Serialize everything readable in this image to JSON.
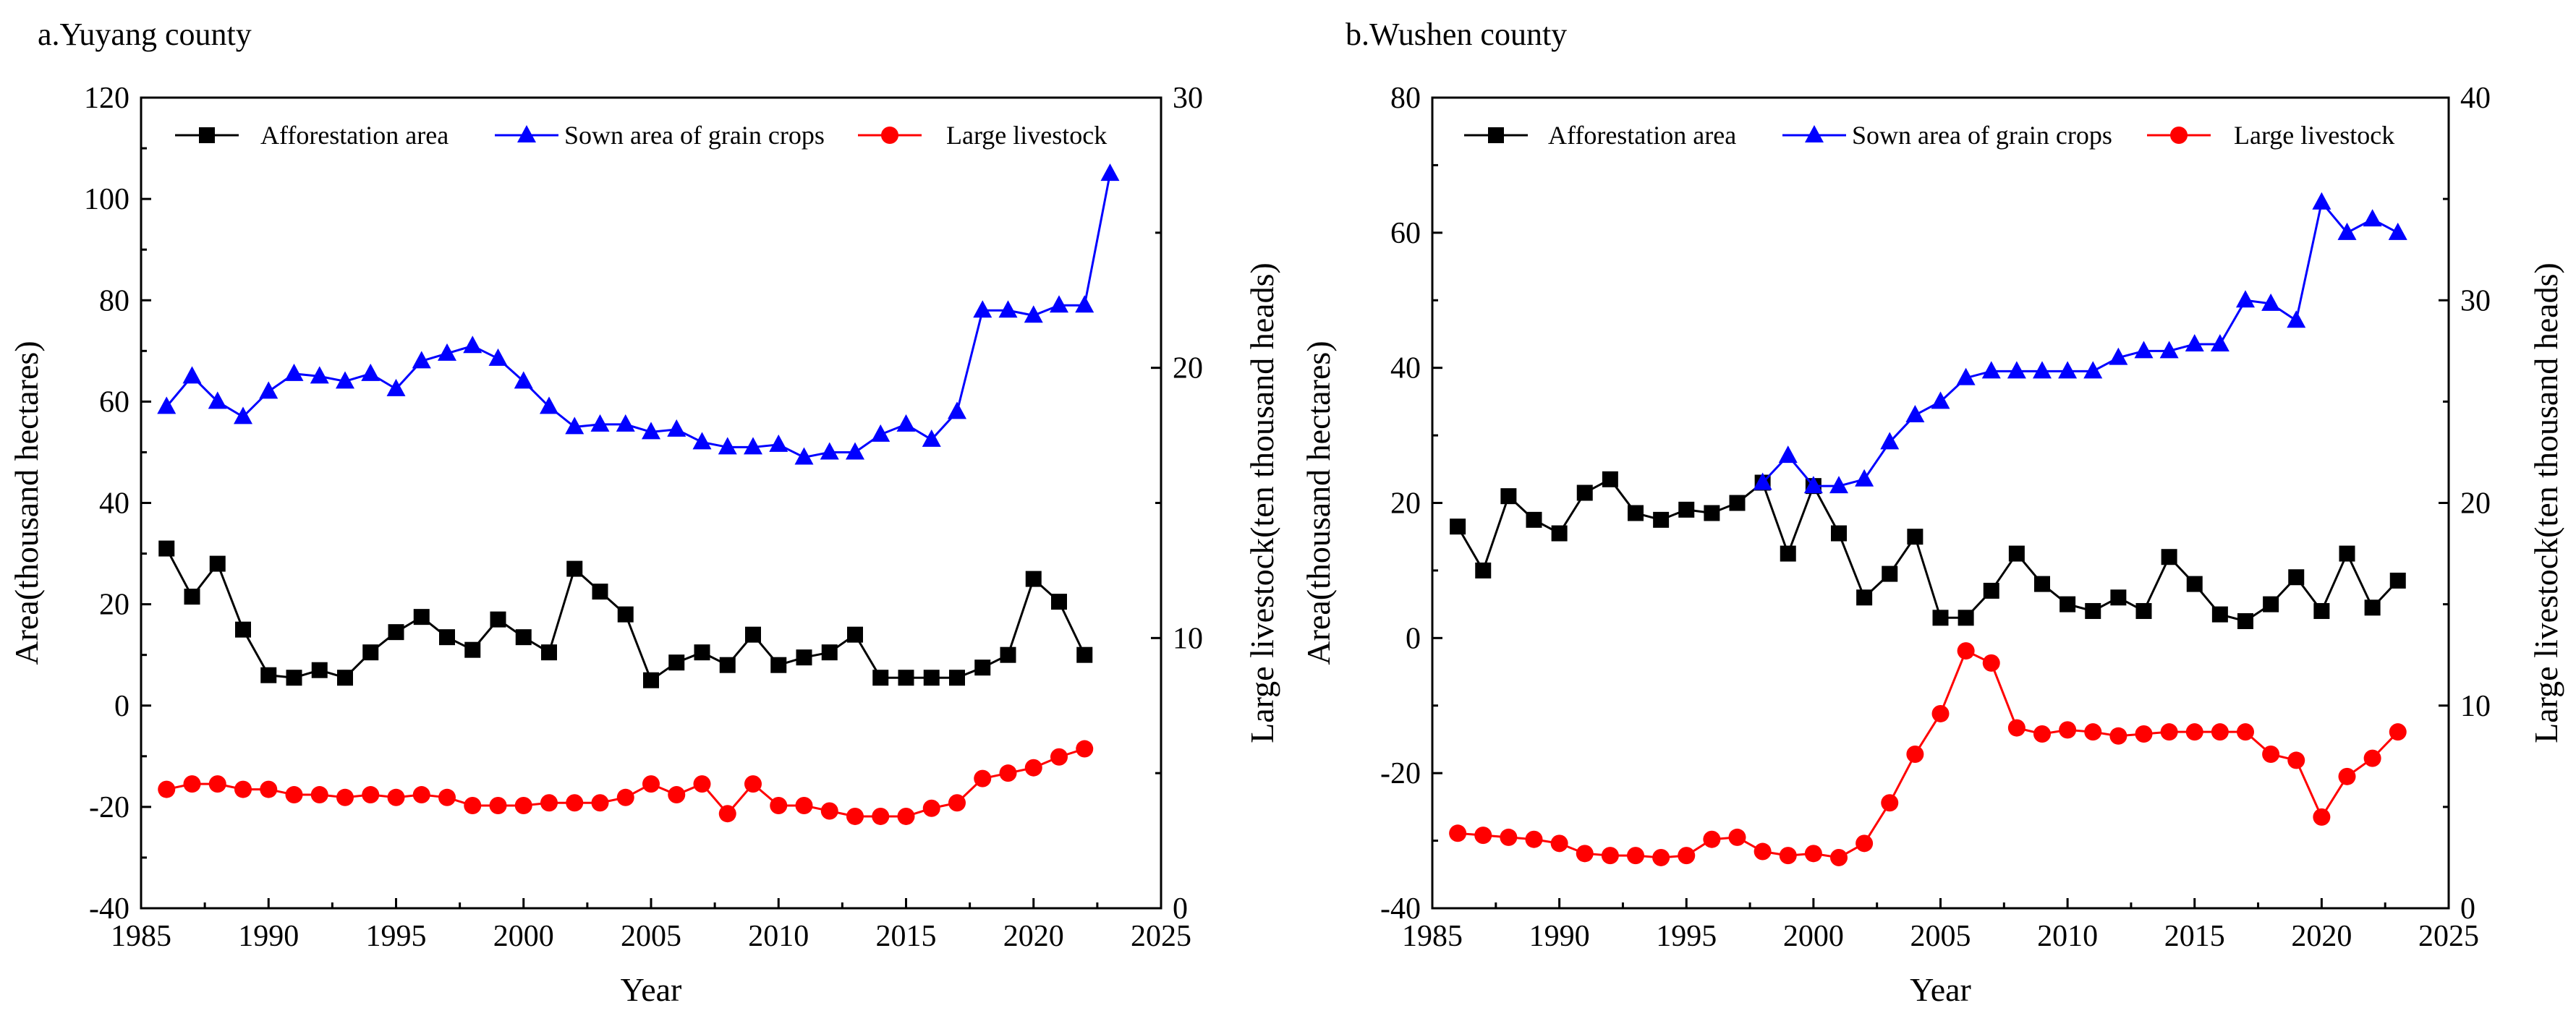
{
  "chart_data": [
    {
      "type": "line",
      "title": "a.Yuyang county",
      "xlabel": "Year",
      "ylabel": "Area(thousand hectares)",
      "ylabel_right": "Large livestock(ten thousand heads)",
      "xlim": [
        1985,
        2025
      ],
      "ylim": [
        -40,
        120
      ],
      "ylim_right": [
        0,
        30
      ],
      "x_ticks": [
        1985,
        1990,
        1995,
        2000,
        2005,
        2010,
        2015,
        2020,
        2025
      ],
      "y_ticks": [
        -40,
        -20,
        0,
        20,
        40,
        60,
        80,
        100,
        120
      ],
      "y_ticks_right": [
        0,
        10,
        20,
        30
      ],
      "legend_position": "top",
      "series": [
        {
          "name": "Afforestation area",
          "axis": "left",
          "color": "#000000",
          "marker": "square",
          "x": [
            1986,
            1987,
            1988,
            1989,
            1990,
            1991,
            1992,
            1993,
            1994,
            1995,
            1996,
            1997,
            1998,
            1999,
            2000,
            2001,
            2002,
            2003,
            2004,
            2005,
            2006,
            2007,
            2008,
            2009,
            2010,
            2011,
            2012,
            2013,
            2014,
            2015,
            2016,
            2017,
            2018,
            2019,
            2020,
            2021,
            2022
          ],
          "values": [
            31,
            21.5,
            28,
            15,
            6,
            5.5,
            7,
            5.5,
            10.5,
            14.5,
            17.5,
            13.5,
            11,
            17,
            13.5,
            10.5,
            27,
            22.5,
            18,
            5,
            8.5,
            10.5,
            8,
            14,
            8,
            9.5,
            10.5,
            14,
            5.5,
            5.5,
            5.5,
            5.5,
            7.5,
            10,
            25,
            20.5,
            10
          ]
        },
        {
          "name": "Sown area of grain crops",
          "axis": "left",
          "color": "#0000ff",
          "marker": "triangle",
          "x": [
            1986,
            1987,
            1988,
            1989,
            1990,
            1991,
            1992,
            1993,
            1994,
            1995,
            1996,
            1997,
            1998,
            1999,
            2000,
            2001,
            2002,
            2003,
            2004,
            2005,
            2006,
            2007,
            2008,
            2009,
            2010,
            2011,
            2012,
            2013,
            2014,
            2015,
            2016,
            2017,
            2018,
            2019,
            2020,
            2021,
            2022,
            2023
          ],
          "values": [
            59,
            65,
            60,
            57,
            62,
            65.5,
            65,
            64,
            65.5,
            62.5,
            68,
            69.5,
            71,
            68.5,
            64,
            59,
            55,
            55.5,
            55.5,
            54,
            54.5,
            52,
            51,
            51,
            51.5,
            49,
            50,
            50,
            53.5,
            55.5,
            52.5,
            58,
            78,
            78,
            77,
            79,
            79,
            105
          ]
        },
        {
          "name": "Large livestock",
          "axis": "right",
          "color": "#ff0000",
          "marker": "circle",
          "x": [
            1986,
            1987,
            1988,
            1989,
            1990,
            1991,
            1992,
            1993,
            1994,
            1995,
            1996,
            1997,
            1998,
            1999,
            2000,
            2001,
            2002,
            2003,
            2004,
            2005,
            2006,
            2007,
            2008,
            2009,
            2010,
            2011,
            2012,
            2013,
            2014,
            2015,
            2016,
            2017,
            2018,
            2019,
            2020,
            2021,
            2022
          ],
          "values": [
            4.4,
            4.6,
            4.6,
            4.4,
            4.4,
            4.2,
            4.2,
            4.1,
            4.2,
            4.1,
            4.2,
            4.1,
            3.8,
            3.8,
            3.8,
            3.9,
            3.9,
            3.9,
            4.1,
            4.6,
            4.2,
            4.6,
            3.5,
            4.6,
            3.8,
            3.8,
            3.6,
            3.4,
            3.4,
            3.4,
            3.7,
            3.9,
            4.8,
            5.0,
            5.2,
            5.6,
            5.9
          ]
        }
      ]
    },
    {
      "type": "line",
      "title": "b.Wushen county",
      "xlabel": "Year",
      "ylabel": "Area(thousand hectares)",
      "ylabel_right": "Large livestock(ten thousand heads)",
      "xlim": [
        1985,
        2025
      ],
      "ylim": [
        -40,
        80
      ],
      "ylim_right": [
        0,
        40
      ],
      "x_ticks": [
        1985,
        1990,
        1995,
        2000,
        2005,
        2010,
        2015,
        2020,
        2025
      ],
      "y_ticks": [
        -40,
        -20,
        0,
        20,
        40,
        60,
        80
      ],
      "y_ticks_right": [
        0,
        10,
        20,
        30,
        40
      ],
      "legend_position": "top",
      "series": [
        {
          "name": "Afforestation area",
          "axis": "left",
          "color": "#000000",
          "marker": "square",
          "x": [
            1986,
            1987,
            1988,
            1989,
            1990,
            1991,
            1992,
            1993,
            1994,
            1995,
            1996,
            1997,
            1998,
            1999,
            2000,
            2001,
            2002,
            2003,
            2004,
            2005,
            2006,
            2007,
            2008,
            2009,
            2010,
            2011,
            2012,
            2013,
            2014,
            2015,
            2016,
            2017,
            2018,
            2019,
            2020,
            2021,
            2022,
            2023
          ],
          "values": [
            16.5,
            10,
            21,
            17.5,
            15.5,
            21.5,
            23.5,
            18.5,
            17.5,
            19,
            18.5,
            20,
            23,
            12.5,
            22.5,
            15.5,
            6,
            9.5,
            15,
            3,
            3,
            7,
            12.5,
            8,
            5,
            4,
            6,
            4,
            12,
            8,
            3.5,
            2.5,
            5,
            9,
            4,
            12.5,
            4.5,
            8.5
          ]
        },
        {
          "name": "Sown area of grain crops",
          "axis": "left",
          "color": "#0000ff",
          "marker": "triangle",
          "x": [
            1998,
            1999,
            2000,
            2001,
            2002,
            2003,
            2004,
            2005,
            2006,
            2007,
            2008,
            2009,
            2010,
            2011,
            2012,
            2013,
            2014,
            2015,
            2016,
            2017,
            2018,
            2019,
            2020,
            2021,
            2022,
            2023
          ],
          "values": [
            23,
            27,
            22.5,
            22.5,
            23.5,
            29,
            33,
            35,
            38.5,
            39.5,
            39.5,
            39.5,
            39.5,
            39.5,
            41.5,
            42.5,
            42.5,
            43.5,
            43.5,
            50,
            49.5,
            47,
            64.5,
            60,
            62,
            60
          ]
        },
        {
          "name": "Large livestock",
          "axis": "right",
          "color": "#ff0000",
          "marker": "circle",
          "x": [
            1986,
            1987,
            1988,
            1989,
            1990,
            1991,
            1992,
            1993,
            1994,
            1995,
            1996,
            1997,
            1998,
            1999,
            2000,
            2001,
            2002,
            2003,
            2004,
            2005,
            2006,
            2007,
            2008,
            2009,
            2010,
            2011,
            2012,
            2013,
            2014,
            2015,
            2016,
            2017,
            2018,
            2019,
            2020,
            2021,
            2022,
            2023
          ],
          "values": [
            3.7,
            3.6,
            3.5,
            3.4,
            3.2,
            2.7,
            2.6,
            2.6,
            2.5,
            2.6,
            3.4,
            3.5,
            2.8,
            2.6,
            2.7,
            2.5,
            3.2,
            5.2,
            7.6,
            9.6,
            12.7,
            12.1,
            8.9,
            8.6,
            8.8,
            8.7,
            8.5,
            8.6,
            8.7,
            8.7,
            8.7,
            8.7,
            7.6,
            7.3,
            4.5,
            6.5,
            7.4,
            8.7
          ]
        }
      ]
    }
  ]
}
